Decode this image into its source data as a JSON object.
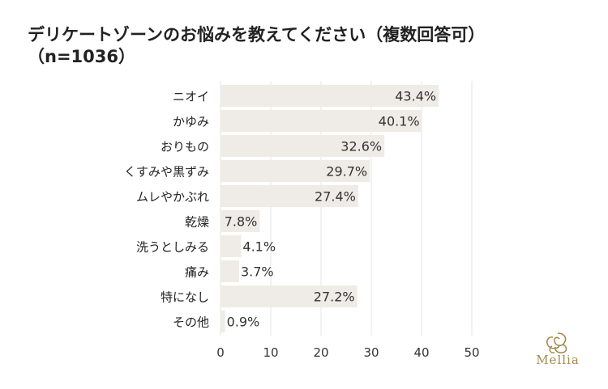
{
  "chart_data": {
    "type": "bar",
    "orientation": "horizontal",
    "title": "デリケートゾーンのお悩みを教えてください（複数回答可）",
    "subtitle": "（n=1036）",
    "categories": [
      "ニオイ",
      "かゆみ",
      "おりもの",
      "くすみや黒ずみ",
      "ムレやかぶれ",
      "乾燥",
      "洗うとしみる",
      "痛み",
      "特になし",
      "その他"
    ],
    "values": [
      43.4,
      40.1,
      32.6,
      29.7,
      27.4,
      7.8,
      4.1,
      3.7,
      27.2,
      0.9
    ],
    "value_labels": [
      "43.4%",
      "40.1%",
      "32.6%",
      "29.7%",
      "27.4%",
      "7.8%",
      "4.1%",
      "3.7%",
      "27.2%",
      "0.9%"
    ],
    "x_ticks": [
      "0",
      "10",
      "20",
      "30",
      "40",
      "50"
    ],
    "xlim": [
      0,
      50
    ],
    "grid": true,
    "bar_color": "#efebe6",
    "grid_color": "#e6e6e6"
  },
  "brand": {
    "name": "Mellia",
    "color": "#a58a4c"
  }
}
